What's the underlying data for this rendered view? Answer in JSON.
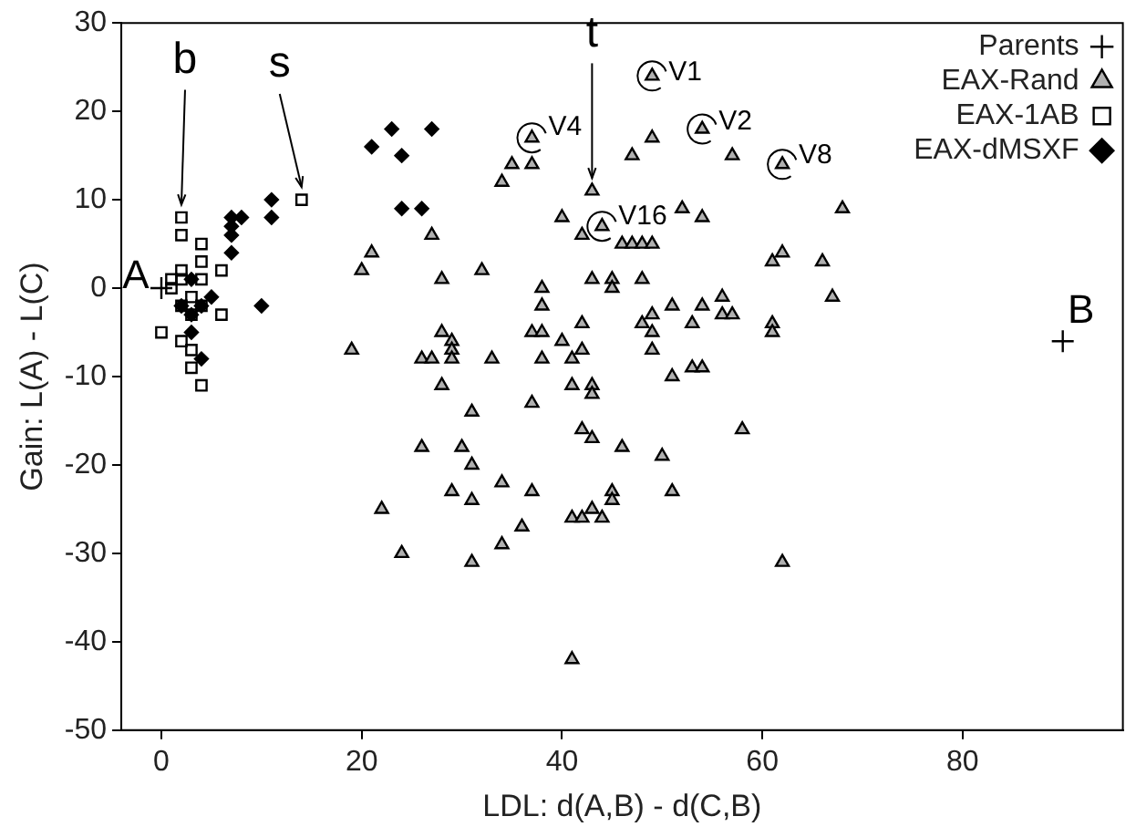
{
  "chart_data": {
    "type": "scatter",
    "xlabel": "LDL: d(A,B) - d(C,B)",
    "ylabel": "Gain: L(A) - L(C)",
    "xlim": [
      -4,
      96
    ],
    "ylim": [
      -50,
      30
    ],
    "xticks": [
      0,
      20,
      40,
      60,
      80
    ],
    "yticks": [
      -50,
      -40,
      -30,
      -20,
      -10,
      0,
      10,
      20,
      30
    ],
    "grid": false,
    "legend": "top right",
    "series": [
      {
        "name": "Parents",
        "color": "#000000",
        "marker": "cross",
        "x": [
          0,
          90
        ],
        "values": [
          0,
          -6
        ]
      },
      {
        "name": "EAX-Rand",
        "color": "#000000",
        "marker": "triangle",
        "x": [
          49,
          37,
          49,
          47,
          35,
          37,
          34,
          43,
          40,
          44,
          42,
          52,
          46,
          47,
          48,
          49,
          27,
          21,
          20,
          19,
          28,
          32,
          38,
          38,
          43,
          45,
          45,
          48,
          42,
          37,
          38,
          40,
          42,
          41,
          38,
          49,
          48,
          49,
          51,
          49,
          28,
          29,
          29,
          29,
          26,
          27,
          33,
          28,
          41,
          43,
          43,
          51,
          31,
          37,
          42,
          43,
          46,
          50,
          26,
          30,
          31,
          34,
          29,
          37,
          45,
          45,
          51,
          31,
          22,
          43,
          41,
          42,
          44,
          36,
          34,
          24,
          31,
          41,
          54,
          57,
          62,
          54,
          68,
          61,
          62,
          66,
          67,
          54,
          56,
          56,
          57,
          53,
          61,
          61,
          53,
          54,
          58,
          62
        ],
        "values": [
          24,
          17,
          17,
          15,
          14,
          14,
          12,
          11,
          8,
          7,
          6,
          9,
          5,
          5,
          5,
          5,
          6,
          4,
          2,
          -7,
          1,
          2,
          0,
          -2,
          1,
          1,
          0,
          1,
          -4,
          -5,
          -5,
          -6,
          -7,
          -8,
          -8,
          -3,
          -4,
          -5,
          -2,
          -7,
          -5,
          -6,
          -7,
          -8,
          -8,
          -8,
          -8,
          -11,
          -11,
          -11,
          -12,
          -10,
          -14,
          -13,
          -16,
          -17,
          -18,
          -19,
          -18,
          -18,
          -20,
          -22,
          -23,
          -23,
          -23,
          -24,
          -23,
          -24,
          -25,
          -25,
          -26,
          -26,
          -26,
          -27,
          -29,
          -30,
          -31,
          -42,
          18,
          15,
          14,
          8,
          9,
          3,
          4,
          3,
          -1,
          -2,
          -1,
          -3,
          -3,
          -4,
          -4,
          -5,
          -9,
          -9,
          -16,
          -31
        ]
      },
      {
        "name": "EAX-1AB",
        "color": "#000000",
        "marker": "square",
        "x": [
          2,
          2,
          4,
          4,
          6,
          2,
          1,
          2,
          4,
          1,
          3,
          2,
          3,
          4,
          6,
          0,
          2,
          3,
          3,
          4,
          14
        ],
        "values": [
          8,
          6,
          5,
          3,
          2,
          2,
          1,
          1,
          1,
          0,
          -1,
          -2,
          -3,
          -2,
          -3,
          -5,
          -6,
          -7,
          -9,
          -11,
          10
        ]
      },
      {
        "name": "EAX-dMSXF",
        "color": "#000000",
        "marker": "diamond",
        "x": [
          11,
          11,
          7,
          8,
          7,
          7,
          7,
          3,
          5,
          2,
          4,
          3,
          10,
          3,
          4,
          23,
          27,
          21,
          24,
          24,
          26
        ],
        "values": [
          10,
          8,
          8,
          8,
          7,
          6,
          4,
          1,
          -1,
          -2,
          -2,
          -3,
          -2,
          -5,
          -8,
          18,
          18,
          16,
          15,
          9,
          9
        ]
      }
    ],
    "annotations": [
      {
        "text": "A",
        "x": 0,
        "y": 0
      },
      {
        "text": "B",
        "x": 90,
        "y": -6
      },
      {
        "text": "b",
        "x": 2,
        "y": 8
      },
      {
        "text": "s",
        "x": 14,
        "y": 10
      },
      {
        "text": "t",
        "x": 43,
        "y": 11
      },
      {
        "text": "V1",
        "x": 49,
        "y": 24
      },
      {
        "text": "V2",
        "x": 54,
        "y": 18
      },
      {
        "text": "V4",
        "x": 37,
        "y": 17
      },
      {
        "text": "V8",
        "x": 62,
        "y": 14
      },
      {
        "text": "V16",
        "x": 44,
        "y": 7
      }
    ]
  }
}
